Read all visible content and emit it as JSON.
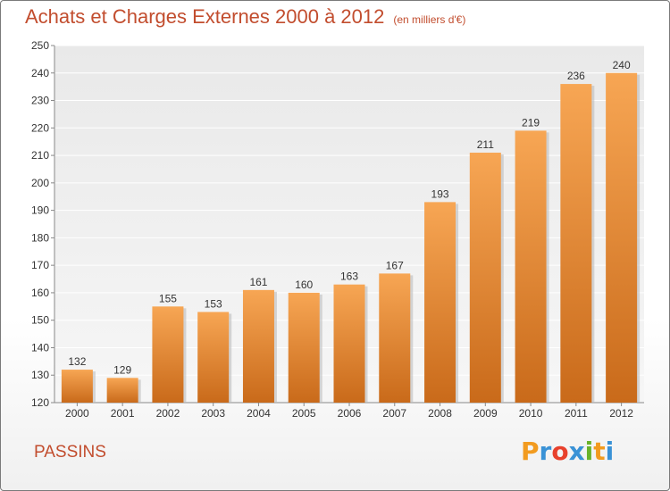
{
  "header": {
    "title": "Achats et Charges Externes 2000 à 2012",
    "subtitle": "(en milliers d'€)"
  },
  "footer": {
    "town": "PASSINS",
    "logo": "Proxiti"
  },
  "colors": {
    "bar_top": "#f7a654",
    "bar_bottom": "#c96a1a",
    "title": "#c24d2e"
  },
  "chart_data": {
    "type": "bar",
    "title": "Achats et Charges Externes 2000 à 2012",
    "subtitle": "(en milliers d'€)",
    "categories": [
      "2000",
      "2001",
      "2002",
      "2003",
      "2004",
      "2005",
      "2006",
      "2007",
      "2008",
      "2009",
      "2010",
      "2011",
      "2012"
    ],
    "values": [
      132,
      129,
      155,
      153,
      161,
      160,
      163,
      167,
      193,
      211,
      219,
      236,
      240
    ],
    "ylim": [
      120,
      250
    ],
    "yticks": [
      120,
      130,
      140,
      150,
      160,
      170,
      180,
      190,
      200,
      210,
      220,
      230,
      240,
      250
    ],
    "grid": true,
    "data_labels": true,
    "xlabel": "",
    "ylabel": ""
  }
}
